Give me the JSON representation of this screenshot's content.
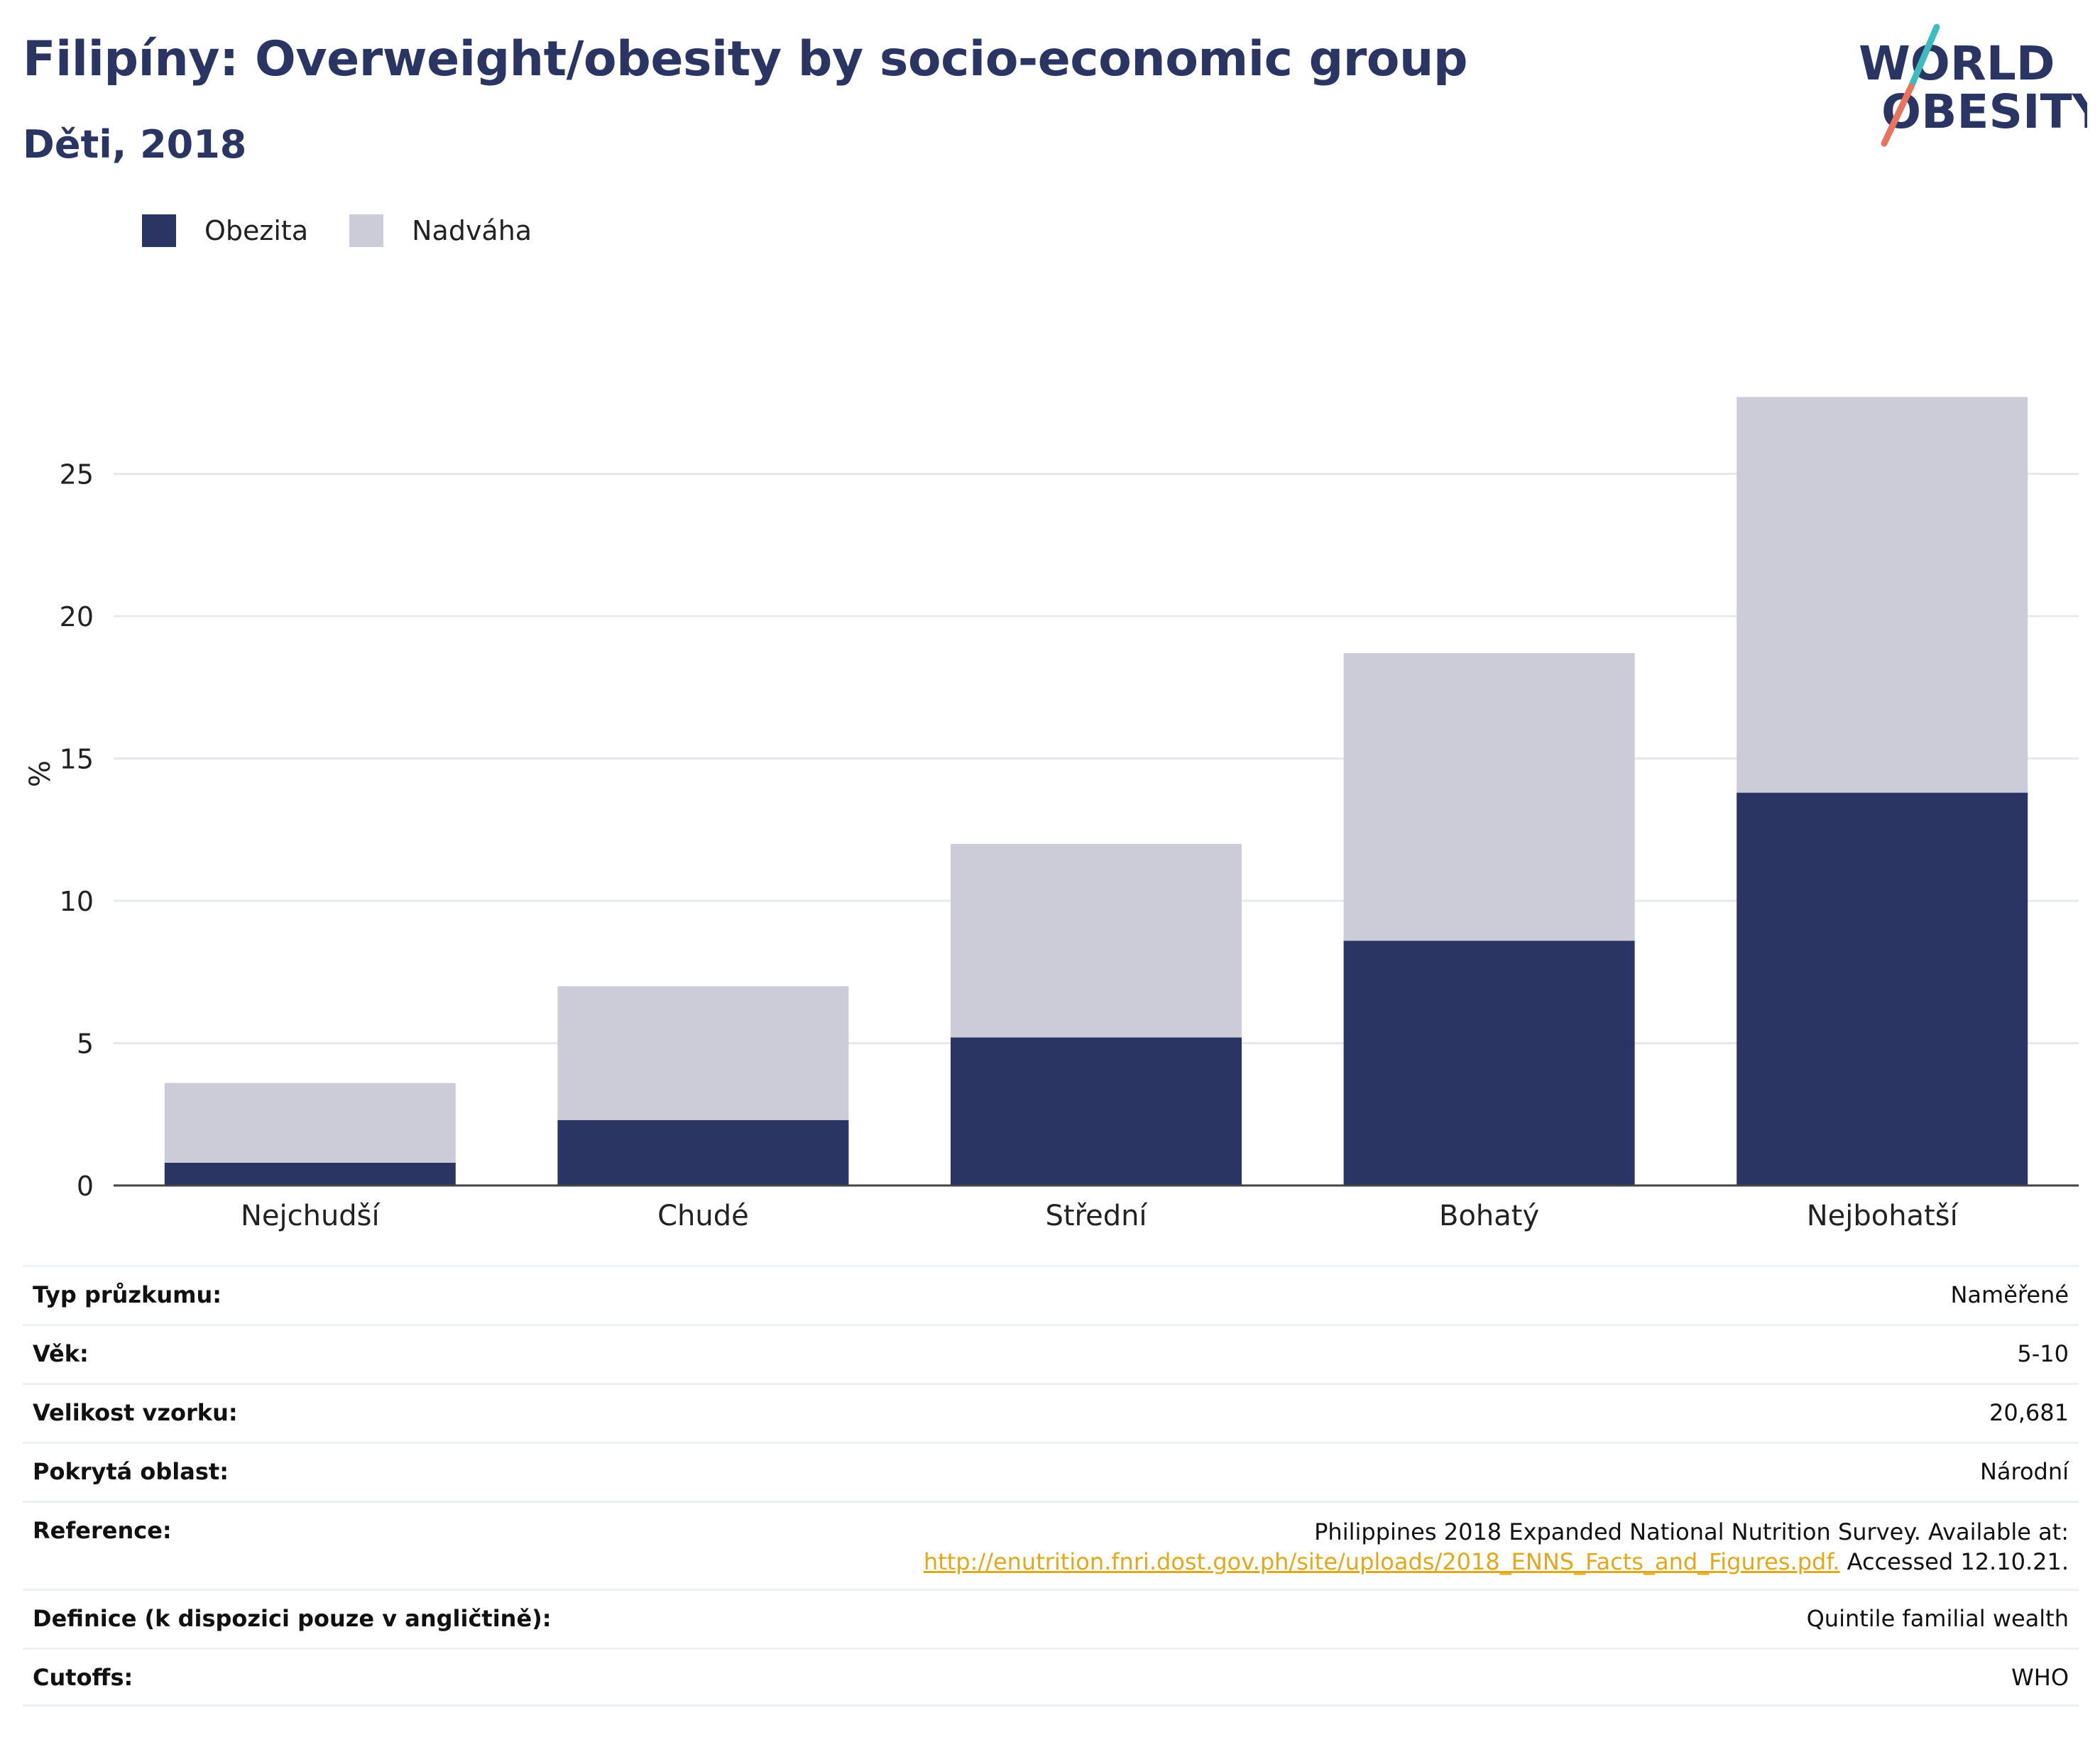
{
  "header": {
    "title": "Filipíny: Overweight/obesity by socio-economic group",
    "subtitle": "Děti, 2018"
  },
  "logo": {
    "line1": "WORLD",
    "line2": "OBESITY"
  },
  "colors": {
    "obesity": "#2b3563",
    "overweight": "#cbccd7",
    "title": "#2b3563",
    "link": "#e3a81a",
    "logo_teal": "#3dbcc0",
    "logo_coral": "#e8735f"
  },
  "chart_data": {
    "type": "bar",
    "stacked": true,
    "title": "Filipíny: Overweight/obesity by socio-economic group",
    "subtitle": "Děti, 2018",
    "xlabel": "",
    "ylabel": "%",
    "ylim": [
      0,
      29
    ],
    "yticks": [
      0,
      5,
      10,
      15,
      20,
      25
    ],
    "grid": true,
    "legend_position": "top-left",
    "categories": [
      "Nejchudší",
      "Chudé",
      "Střední",
      "Bohatý",
      "Nejbohatší"
    ],
    "series": [
      {
        "name": "Obezita",
        "values": [
          0.8,
          2.3,
          5.2,
          8.6,
          13.8
        ]
      },
      {
        "name": "Nadváha",
        "values": [
          2.8,
          4.7,
          6.8,
          10.1,
          13.9
        ]
      }
    ]
  },
  "info": {
    "survey_type_label": "Typ průzkumu:",
    "survey_type_value": "Naměřené",
    "age_label": "Věk:",
    "age_value": "5-10",
    "sample_label": "Velikost vzorku:",
    "sample_value": "20,681",
    "area_label": "Pokrytá oblast:",
    "area_value": "Národní",
    "reference_label": "Reference:",
    "reference_line1": "Philippines 2018 Expanded National Nutrition Survey. Available at:",
    "reference_link": "http://enutrition.fnri.dost.gov.ph/site/uploads/2018_ENNS_Facts_and_Figures.pdf.",
    "reference_accessed": " Accessed 12.10.21.",
    "definition_label": "Definice (k dispozici pouze v angličtině):",
    "definition_value": "Quintile familial wealth",
    "cutoffs_label": "Cutoffs:",
    "cutoffs_value": "WHO"
  }
}
